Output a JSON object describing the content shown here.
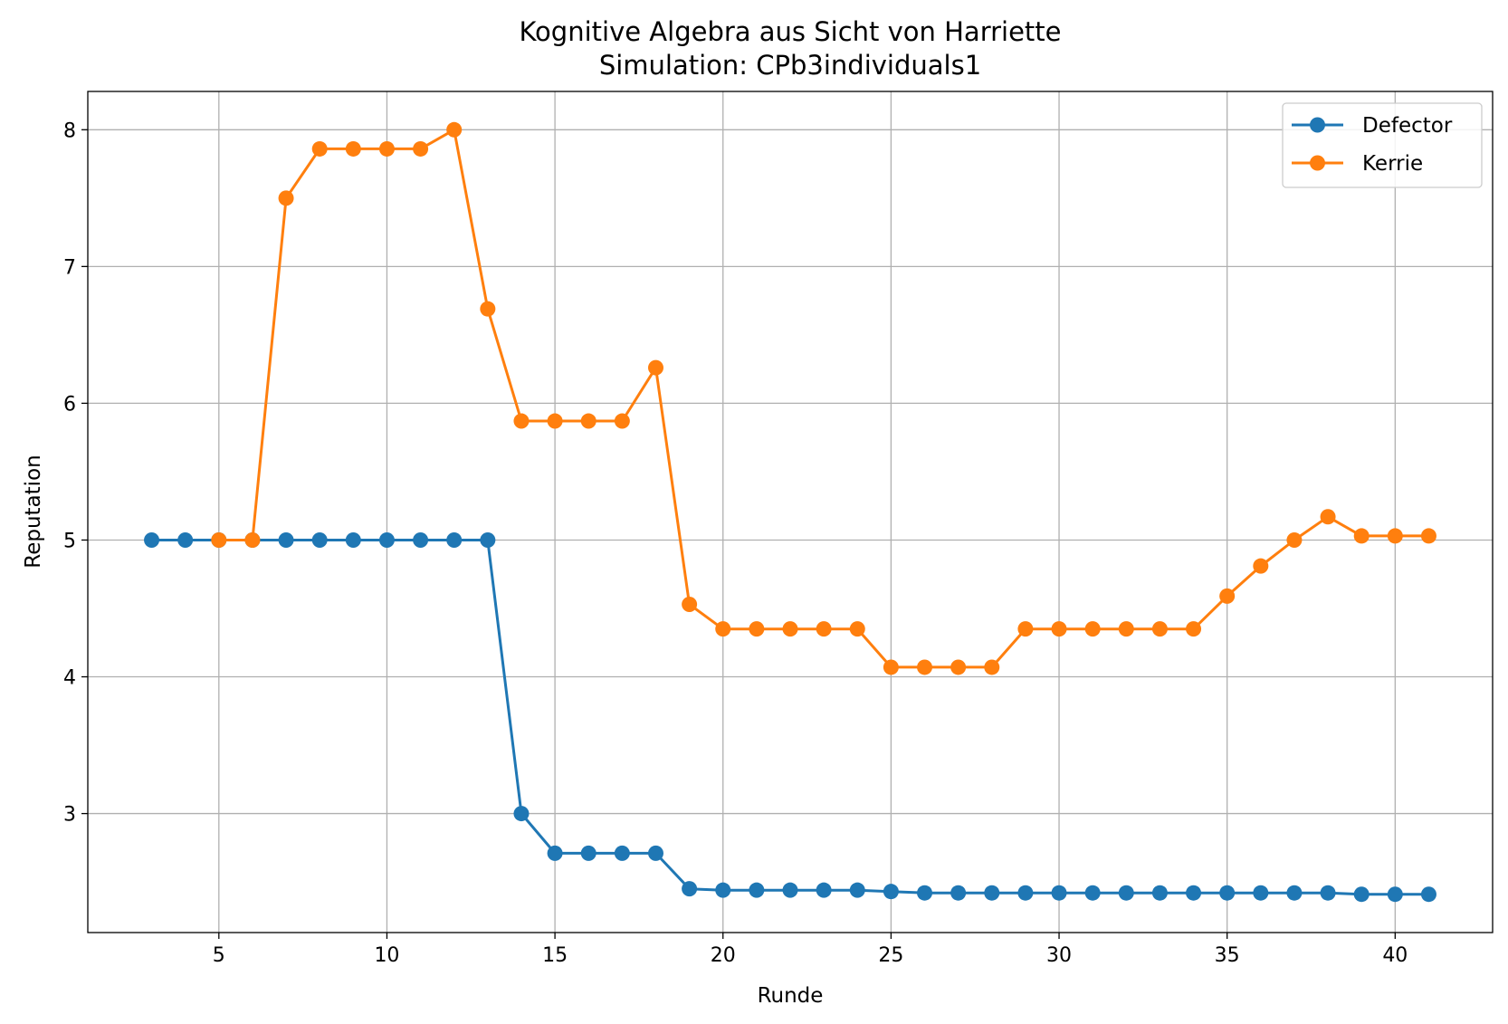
{
  "chart_data": {
    "type": "line",
    "title": "Kognitive Algebra aus Sicht von Harriette",
    "subtitle": "Simulation: CPb3individuals1",
    "xlabel": "Runde",
    "ylabel": "Reputation",
    "xlim": [
      1.1,
      42.9
    ],
    "ylim": [
      2.13,
      8.28
    ],
    "xticks": [
      5,
      10,
      15,
      20,
      25,
      30,
      35,
      40
    ],
    "yticks": [
      3,
      4,
      5,
      6,
      7,
      8
    ],
    "grid": true,
    "legend_position": "top-right",
    "series": [
      {
        "name": "Defector",
        "color": "#1f77b4",
        "x": [
          3,
          4,
          5,
          6,
          7,
          8,
          9,
          10,
          11,
          12,
          13,
          14,
          15,
          16,
          17,
          18,
          19,
          20,
          21,
          22,
          23,
          24,
          25,
          26,
          27,
          28,
          29,
          30,
          31,
          32,
          33,
          34,
          35,
          36,
          37,
          38,
          39,
          40,
          41
        ],
        "y": [
          5.0,
          5.0,
          5.0,
          5.0,
          5.0,
          5.0,
          5.0,
          5.0,
          5.0,
          5.0,
          5.0,
          3.0,
          2.71,
          2.71,
          2.71,
          2.71,
          2.45,
          2.44,
          2.44,
          2.44,
          2.44,
          2.44,
          2.43,
          2.42,
          2.42,
          2.42,
          2.42,
          2.42,
          2.42,
          2.42,
          2.42,
          2.42,
          2.42,
          2.42,
          2.42,
          2.42,
          2.41,
          2.41,
          2.41
        ]
      },
      {
        "name": "Kerrie",
        "color": "#ff7f0e",
        "x": [
          5,
          6,
          7,
          8,
          9,
          10,
          11,
          12,
          13,
          14,
          15,
          16,
          17,
          18,
          19,
          20,
          21,
          22,
          23,
          24,
          25,
          26,
          27,
          28,
          29,
          30,
          31,
          32,
          33,
          34,
          35,
          36,
          37,
          38,
          39,
          40,
          41
        ],
        "y": [
          5.0,
          5.0,
          7.5,
          7.86,
          7.86,
          7.86,
          7.86,
          8.0,
          6.69,
          5.87,
          5.87,
          5.87,
          5.87,
          6.26,
          4.53,
          4.35,
          4.35,
          4.35,
          4.35,
          4.35,
          4.07,
          4.07,
          4.07,
          4.07,
          4.35,
          4.35,
          4.35,
          4.35,
          4.35,
          4.35,
          4.59,
          4.81,
          5.0,
          5.17,
          5.03,
          5.03,
          5.03
        ]
      }
    ]
  }
}
